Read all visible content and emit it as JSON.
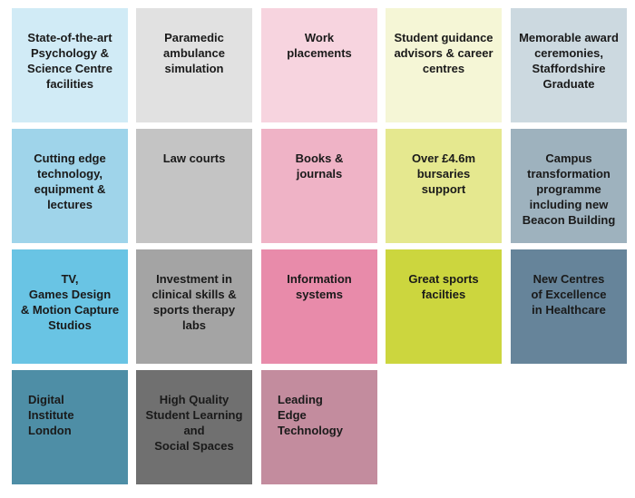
{
  "tiles": [
    {
      "label": "State-of-the-art\nPsychology &\nScience Centre\nfacilities",
      "color": "#d1ebf6"
    },
    {
      "label": "Paramedic\nambulance\nsimulation",
      "color": "#e1e1e1"
    },
    {
      "label": "Work\nplacements",
      "color": "#f7d4df"
    },
    {
      "label": "Student guidance\nadvisors & career\ncentres",
      "color": "#f5f6d6"
    },
    {
      "label": "Memorable award\nceremonies,\nStaffordshire\nGraduate",
      "color": "#ccd9e0"
    },
    {
      "label": "Cutting edge\ntechnology,\nequipment &\nlectures",
      "color": "#9fd4ea"
    },
    {
      "label": "Law courts",
      "color": "#c4c4c4"
    },
    {
      "label": "Books &\njournals",
      "color": "#efb3c6"
    },
    {
      "label": "Over £4.6m\nbursaries\nsupport",
      "color": "#e5e88f"
    },
    {
      "label": "Campus\ntransformation\nprogramme\nincluding new\nBeacon Building",
      "color": "#9eb2be"
    },
    {
      "label": "TV,\nGames Design\n& Motion Capture\nStudios",
      "color": "#69c4e4"
    },
    {
      "label": "Investment in\nclinical skills &\nsports therapy\nlabs",
      "color": "#a4a4a4"
    },
    {
      "label": "Information\nsystems",
      "color": "#e88baa"
    },
    {
      "label": "Great sports\nfacilties",
      "color": "#ccd63e"
    },
    {
      "label": "New Centres\nof Excellence\nin Healthcare",
      "color": "#66849a"
    },
    {
      "label": "Digital\nInstitute\nLondon",
      "color": "#4e8ea6"
    },
    {
      "label": "High Quality\nStudent Learning\nand\nSocial Spaces",
      "color": "#707070"
    },
    {
      "label": "Leading\n Edge\nTechnology",
      "color": "#c38c9e"
    }
  ]
}
